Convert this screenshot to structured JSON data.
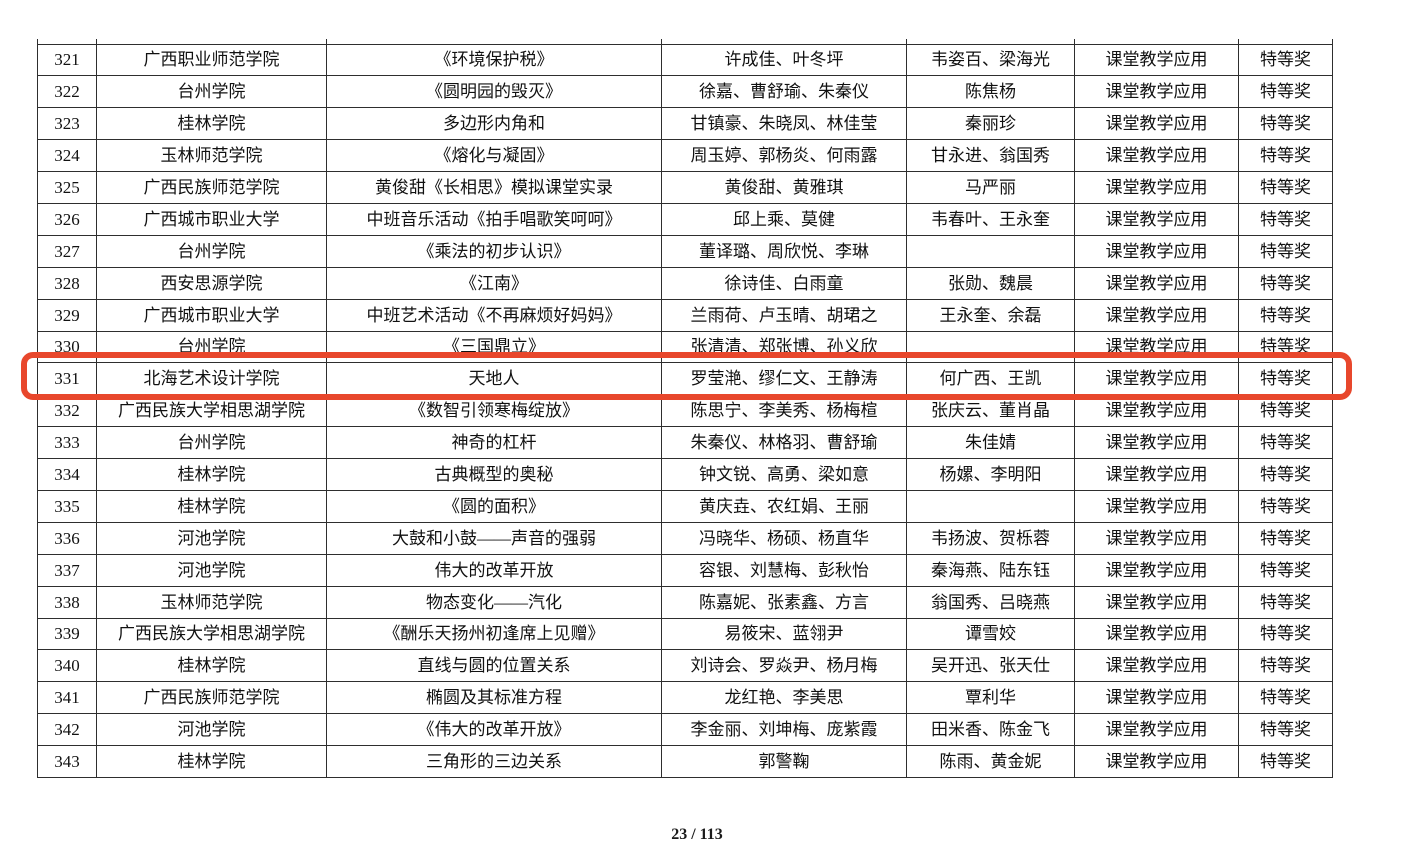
{
  "page": {
    "background_color": "#ffffff",
    "footer_page_indicator": "23 / 113"
  },
  "annotation": {
    "type": "red-rounded-rectangle-highlight",
    "color": "#e8472c",
    "highlighted_row_number": "331"
  },
  "table": {
    "rows": [
      {
        "num": "321",
        "institution": "广西职业师范学院",
        "title": "《环境保护税》",
        "authors": "许成佳、叶冬坪",
        "advisors": "韦姿百、梁海光",
        "category": "课堂教学应用",
        "award": "特等奖"
      },
      {
        "num": "322",
        "institution": "台州学院",
        "title": "《圆明园的毁灭》",
        "authors": "徐嘉、曹舒瑜、朱秦仪",
        "advisors": "陈焦杨",
        "category": "课堂教学应用",
        "award": "特等奖"
      },
      {
        "num": "323",
        "institution": "桂林学院",
        "title": "多边形内角和",
        "authors": "甘镇豪、朱晓凤、林佳莹",
        "advisors": "秦丽珍",
        "category": "课堂教学应用",
        "award": "特等奖"
      },
      {
        "num": "324",
        "institution": "玉林师范学院",
        "title": "《熔化与凝固》",
        "authors": "周玉婷、郭杨炎、何雨露",
        "advisors": "甘永进、翁国秀",
        "category": "课堂教学应用",
        "award": "特等奖"
      },
      {
        "num": "325",
        "institution": "广西民族师范学院",
        "title": "黄俊甜《长相思》模拟课堂实录",
        "authors": "黄俊甜、黄雅琪",
        "advisors": "马严丽",
        "category": "课堂教学应用",
        "award": "特等奖"
      },
      {
        "num": "326",
        "institution": "广西城市职业大学",
        "title": "中班音乐活动《拍手唱歌笑呵呵》",
        "authors": "邱上乘、莫健",
        "advisors": "韦春叶、王永奎",
        "category": "课堂教学应用",
        "award": "特等奖"
      },
      {
        "num": "327",
        "institution": "台州学院",
        "title": "《乘法的初步认识》",
        "authors": "董译璐、周欣悦、李琳",
        "advisors": "",
        "category": "课堂教学应用",
        "award": "特等奖"
      },
      {
        "num": "328",
        "institution": "西安思源学院",
        "title": "《江南》",
        "authors": "徐诗佳、白雨童",
        "advisors": "张勋、魏晨",
        "category": "课堂教学应用",
        "award": "特等奖"
      },
      {
        "num": "329",
        "institution": "广西城市职业大学",
        "title": "中班艺术活动《不再麻烦好妈妈》",
        "authors": "兰雨荷、卢玉晴、胡珺之",
        "advisors": "王永奎、余磊",
        "category": "课堂教学应用",
        "award": "特等奖"
      },
      {
        "num": "330",
        "institution": "台州学院",
        "title": "《三国鼎立》",
        "authors": "张清清、郑张博、孙义欣",
        "advisors": "",
        "category": "课堂教学应用",
        "award": "特等奖"
      },
      {
        "num": "331",
        "institution": "北海艺术设计学院",
        "title": "天地人",
        "authors": "罗莹滟、缪仁文、王静涛",
        "advisors": "何广西、王凯",
        "category": "课堂教学应用",
        "award": "特等奖"
      },
      {
        "num": "332",
        "institution": "广西民族大学相思湖学院",
        "title": "《数智引领寒梅绽放》",
        "authors": "陈思宁、李美秀、杨梅楦",
        "advisors": "张庆云、董肖晶",
        "category": "课堂教学应用",
        "award": "特等奖"
      },
      {
        "num": "333",
        "institution": "台州学院",
        "title": "神奇的杠杆",
        "authors": "朱秦仪、林格羽、曹舒瑜",
        "advisors": "朱佳婧",
        "category": "课堂教学应用",
        "award": "特等奖"
      },
      {
        "num": "334",
        "institution": "桂林学院",
        "title": "古典概型的奥秘",
        "authors": "钟文锐、高勇、梁如意",
        "advisors": "杨嫘、李明阳",
        "category": "课堂教学应用",
        "award": "特等奖"
      },
      {
        "num": "335",
        "institution": "桂林学院",
        "title": "《圆的面积》",
        "authors": "黄庆垚、农红娟、王丽",
        "advisors": "",
        "category": "课堂教学应用",
        "award": "特等奖"
      },
      {
        "num": "336",
        "institution": "河池学院",
        "title": "大鼓和小鼓——声音的强弱",
        "authors": "冯晓华、杨硕、杨直华",
        "advisors": "韦扬波、贺栎蓉",
        "category": "课堂教学应用",
        "award": "特等奖"
      },
      {
        "num": "337",
        "institution": "河池学院",
        "title": "伟大的改革开放",
        "authors": "容银、刘慧梅、彭秋怡",
        "advisors": "秦海燕、陆东钰",
        "category": "课堂教学应用",
        "award": "特等奖"
      },
      {
        "num": "338",
        "institution": "玉林师范学院",
        "title": "物态变化——汽化",
        "authors": "陈嘉妮、张素鑫、方言",
        "advisors": "翁国秀、吕晓燕",
        "category": "课堂教学应用",
        "award": "特等奖"
      },
      {
        "num": "339",
        "institution": "广西民族大学相思湖学院",
        "title": "《酬乐天扬州初逢席上见赠》",
        "authors": "易筱宋、蓝翎尹",
        "advisors": "谭雪姣",
        "category": "课堂教学应用",
        "award": "特等奖"
      },
      {
        "num": "340",
        "institution": "桂林学院",
        "title": "直线与圆的位置关系",
        "authors": "刘诗会、罗焱尹、杨月梅",
        "advisors": "吴开迅、张天仕",
        "category": "课堂教学应用",
        "award": "特等奖"
      },
      {
        "num": "341",
        "institution": "广西民族师范学院",
        "title": "椭圆及其标准方程",
        "authors": "龙红艳、李美思",
        "advisors": "覃利华",
        "category": "课堂教学应用",
        "award": "特等奖"
      },
      {
        "num": "342",
        "institution": "河池学院",
        "title": "《伟大的改革开放》",
        "authors": "李金丽、刘坤梅、庞紫霞",
        "advisors": "田米香、陈金飞",
        "category": "课堂教学应用",
        "award": "特等奖"
      },
      {
        "num": "343",
        "institution": "桂林学院",
        "title": "三角形的三边关系",
        "authors": "郭警鞠",
        "advisors": "陈雨、黄金妮",
        "category": "课堂教学应用",
        "award": "特等奖"
      }
    ]
  }
}
